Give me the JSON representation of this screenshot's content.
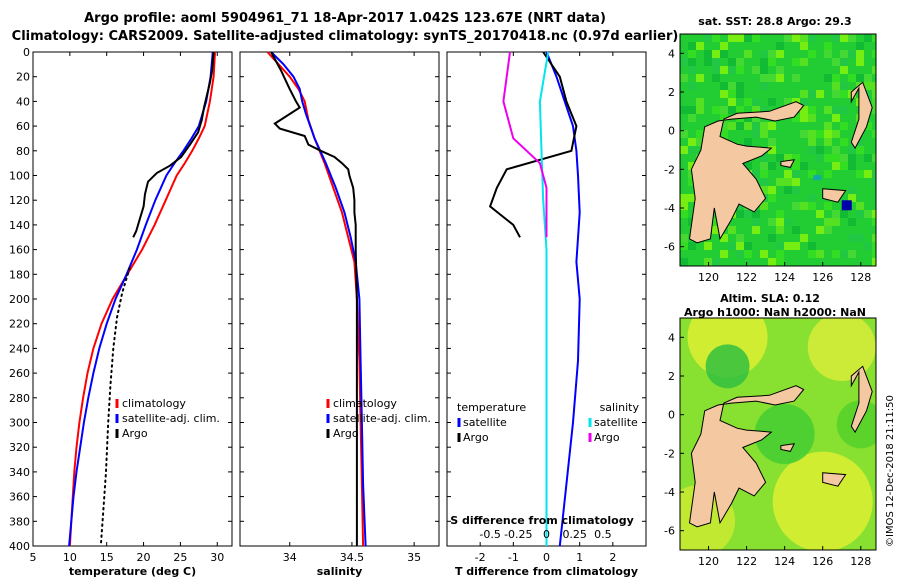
{
  "header": {
    "title_line1": "Argo profile: aoml 5904961_71 18-Apr-2017 1.042S 123.67E (NRT data)",
    "title_line2": "Climatology: CARS2009. Satellite-adjusted climatology: synTS_20170418.nc (0.97d earlier)"
  },
  "colors": {
    "climatology": "#ff0000",
    "satellite": "#0000ff",
    "argo": "#000000",
    "salinity_satellite": "#00e5ee",
    "salinity_argo": "#ee00ee",
    "land": "#f4c8a0",
    "map_green": "#33cc33",
    "map_yellow": "#ddee33"
  },
  "chart_data": [
    {
      "type": "line",
      "name": "temperature-profile",
      "xlabel": "temperature (deg C)",
      "ylabel": "",
      "xlim": [
        5,
        32
      ],
      "ylim": [
        400,
        0
      ],
      "xticks": [
        5,
        10,
        15,
        20,
        25,
        30
      ],
      "yticks": [
        0,
        20,
        40,
        60,
        80,
        100,
        120,
        140,
        160,
        180,
        200,
        220,
        240,
        260,
        280,
        300,
        320,
        340,
        360,
        380,
        400
      ],
      "legend": [
        "climatology",
        "satellite-adj. clim.",
        "Argo"
      ],
      "legend_position": "bottom-right",
      "series": [
        {
          "name": "climatology",
          "color": "#ff0000",
          "points": [
            [
              29.7,
              0
            ],
            [
              29.5,
              20
            ],
            [
              29.0,
              40
            ],
            [
              28.3,
              60
            ],
            [
              27.5,
              70
            ],
            [
              26.6,
              80
            ],
            [
              25.6,
              90
            ],
            [
              24.5,
              100
            ],
            [
              23.0,
              120
            ],
            [
              21.5,
              140
            ],
            [
              19.8,
              160
            ],
            [
              17.8,
              180
            ],
            [
              15.8,
              200
            ],
            [
              14.3,
              220
            ],
            [
              13.2,
              240
            ],
            [
              12.4,
              260
            ],
            [
              11.8,
              280
            ],
            [
              11.3,
              300
            ],
            [
              10.9,
              320
            ],
            [
              10.6,
              340
            ],
            [
              10.4,
              360
            ],
            [
              10.2,
              380
            ],
            [
              10.0,
              400
            ]
          ]
        },
        {
          "name": "satellite-adj. clim.",
          "color": "#0000ff",
          "points": [
            [
              29.4,
              0
            ],
            [
              29.1,
              20
            ],
            [
              28.5,
              40
            ],
            [
              27.5,
              60
            ],
            [
              26.5,
              70
            ],
            [
              25.4,
              80
            ],
            [
              24.2,
              90
            ],
            [
              23.1,
              100
            ],
            [
              21.6,
              120
            ],
            [
              20.3,
              140
            ],
            [
              19.1,
              160
            ],
            [
              17.7,
              180
            ],
            [
              16.2,
              200
            ],
            [
              15.0,
              220
            ],
            [
              14.0,
              240
            ],
            [
              13.2,
              260
            ],
            [
              12.5,
              280
            ],
            [
              11.9,
              300
            ],
            [
              11.4,
              320
            ],
            [
              10.9,
              340
            ],
            [
              10.5,
              360
            ],
            [
              10.2,
              380
            ],
            [
              9.9,
              400
            ]
          ]
        },
        {
          "name": "Argo",
          "color": "#000000",
          "points": [
            [
              29.5,
              0
            ],
            [
              29.3,
              15
            ],
            [
              29.0,
              25
            ],
            [
              28.6,
              35
            ],
            [
              28.2,
              45
            ],
            [
              27.9,
              55
            ],
            [
              27.4,
              65
            ],
            [
              26.3,
              75
            ],
            [
              25.1,
              85
            ],
            [
              23.6,
              92
            ],
            [
              21.8,
              98
            ],
            [
              20.6,
              105
            ],
            [
              20.2,
              115
            ],
            [
              20.0,
              125
            ],
            [
              19.5,
              135
            ],
            [
              19.0,
              145
            ],
            [
              18.6,
              150
            ]
          ]
        },
        {
          "name": "Argo-deep",
          "color": "#000000",
          "dotted": true,
          "points": [
            [
              18.1,
              175
            ],
            [
              17.1,
              195
            ],
            [
              16.4,
              215
            ],
            [
              15.9,
              240
            ],
            [
              15.5,
              270
            ],
            [
              15.2,
              300
            ],
            [
              14.9,
              340
            ],
            [
              14.5,
              375
            ],
            [
              14.2,
              400
            ]
          ]
        }
      ]
    },
    {
      "type": "line",
      "name": "salinity-profile",
      "xlabel": "salinity",
      "xlim": [
        33.6,
        35.2
      ],
      "ylim": [
        400,
        0
      ],
      "xticks": [
        34,
        34.5,
        35
      ],
      "xticklabels": [
        "34",
        "34.5",
        "35"
      ],
      "legend": [
        "climatology",
        "satellite-adj. clim.",
        "Argo"
      ],
      "legend_position": "bottom-right",
      "series": [
        {
          "name": "climatology",
          "color": "#ff0000",
          "points": [
            [
              33.82,
              0
            ],
            [
              33.91,
              10
            ],
            [
              34.0,
              20
            ],
            [
              34.07,
              30
            ],
            [
              34.12,
              40
            ],
            [
              34.15,
              55
            ],
            [
              34.2,
              70
            ],
            [
              34.28,
              90
            ],
            [
              34.35,
              110
            ],
            [
              34.42,
              130
            ],
            [
              34.47,
              150
            ],
            [
              34.52,
              170
            ],
            [
              34.54,
              200
            ],
            [
              34.56,
              250
            ],
            [
              34.57,
              300
            ],
            [
              34.58,
              350
            ],
            [
              34.59,
              400
            ]
          ]
        },
        {
          "name": "satellite-adj. clim.",
          "color": "#0000ff",
          "points": [
            [
              33.85,
              0
            ],
            [
              33.95,
              10
            ],
            [
              34.03,
              20
            ],
            [
              34.08,
              30
            ],
            [
              34.1,
              40
            ],
            [
              34.13,
              50
            ],
            [
              34.2,
              70
            ],
            [
              34.29,
              90
            ],
            [
              34.37,
              110
            ],
            [
              34.44,
              130
            ],
            [
              34.49,
              150
            ],
            [
              34.53,
              170
            ],
            [
              34.56,
              200
            ],
            [
              34.57,
              250
            ],
            [
              34.58,
              300
            ],
            [
              34.59,
              350
            ],
            [
              34.61,
              400
            ]
          ]
        },
        {
          "name": "Argo",
          "color": "#000000",
          "points": [
            [
              33.85,
              0
            ],
            [
              33.93,
              15
            ],
            [
              34.0,
              30
            ],
            [
              34.05,
              40
            ],
            [
              34.08,
              45
            ],
            [
              33.88,
              58
            ],
            [
              33.92,
              62
            ],
            [
              34.12,
              68
            ],
            [
              34.15,
              75
            ],
            [
              34.25,
              80
            ],
            [
              34.36,
              85
            ],
            [
              34.42,
              90
            ],
            [
              34.47,
              95
            ],
            [
              34.48,
              100
            ],
            [
              34.51,
              110
            ],
            [
              34.52,
              120
            ],
            [
              34.52,
              130
            ],
            [
              34.53,
              140
            ],
            [
              34.53,
              160
            ],
            [
              34.54,
              200
            ],
            [
              34.54,
              260
            ],
            [
              34.54,
              320
            ],
            [
              34.54,
              400
            ]
          ]
        }
      ]
    },
    {
      "type": "line",
      "name": "difference-profile",
      "xlabel": "T difference from climatology",
      "xlim": [
        -3,
        3
      ],
      "ylim": [
        400,
        0
      ],
      "xticks": [
        -2,
        -1,
        0,
        1,
        2
      ],
      "xticklabels": [
        "-2",
        "-1",
        "0",
        "1",
        "2"
      ],
      "top_axis_label": "S difference from climatology",
      "top_xticklabels": [
        "-0.5",
        "-0.25",
        "0",
        "0.25",
        "0.5"
      ],
      "legend_left_title": "temperature",
      "legend_right_title": "salinity",
      "legend": [
        "satellite",
        "Argo",
        "satellite",
        "Argo"
      ],
      "series": [
        {
          "name": "T satellite",
          "color": "#0000ff",
          "points": [
            [
              0.0,
              0
            ],
            [
              0.3,
              20
            ],
            [
              0.55,
              40
            ],
            [
              0.8,
              60
            ],
            [
              0.9,
              80
            ],
            [
              0.95,
              100
            ],
            [
              1.0,
              130
            ],
            [
              0.9,
              170
            ],
            [
              1.0,
              200
            ],
            [
              0.95,
              250
            ],
            [
              0.8,
              300
            ],
            [
              0.6,
              350
            ],
            [
              0.4,
              400
            ]
          ]
        },
        {
          "name": "T Argo",
          "color": "#000000",
          "points": [
            [
              -0.1,
              0
            ],
            [
              0.4,
              20
            ],
            [
              0.6,
              40
            ],
            [
              0.9,
              60
            ],
            [
              0.75,
              80
            ],
            [
              -1.2,
              95
            ],
            [
              -1.5,
              110
            ],
            [
              -1.7,
              125
            ],
            [
              -1.0,
              140
            ],
            [
              -0.8,
              150
            ]
          ]
        },
        {
          "name": "S satellite",
          "color": "#00e5ee",
          "points": [
            [
              0.05,
              0
            ],
            [
              -0.2,
              40
            ],
            [
              -0.15,
              80
            ],
            [
              -0.1,
              120
            ],
            [
              0.0,
              160
            ],
            [
              0.0,
              400
            ]
          ]
        },
        {
          "name": "S Argo",
          "color": "#ee00ee",
          "points": [
            [
              -1.1,
              0
            ],
            [
              -1.2,
              20
            ],
            [
              -1.3,
              40
            ],
            [
              -1.0,
              70
            ],
            [
              -0.2,
              90
            ],
            [
              0.0,
              110
            ],
            [
              0.0,
              150
            ]
          ]
        }
      ]
    },
    {
      "type": "heatmap",
      "name": "sst-map",
      "title": "sat. SST: 28.8 Argo: 29.3",
      "xlim": [
        118.5,
        128.8
      ],
      "ylim": [
        -7,
        5
      ],
      "xticks": [
        120,
        122,
        124,
        126,
        128
      ],
      "yticks": [
        4,
        2,
        0,
        -2,
        -4,
        -6
      ]
    },
    {
      "type": "heatmap",
      "name": "sla-map",
      "title_line1": "Altim. SLA: 0.12",
      "title_line2": "Argo h1000: NaN h2000: NaN",
      "xlim": [
        118.5,
        128.8
      ],
      "ylim": [
        -7,
        5
      ],
      "xticks": [
        120,
        122,
        124,
        126,
        128
      ],
      "yticks": [
        4,
        2,
        0,
        -2,
        -4,
        -6
      ]
    }
  ],
  "footer": {
    "credit": "©IMOS 12-Dec-2018 21:11:50"
  }
}
